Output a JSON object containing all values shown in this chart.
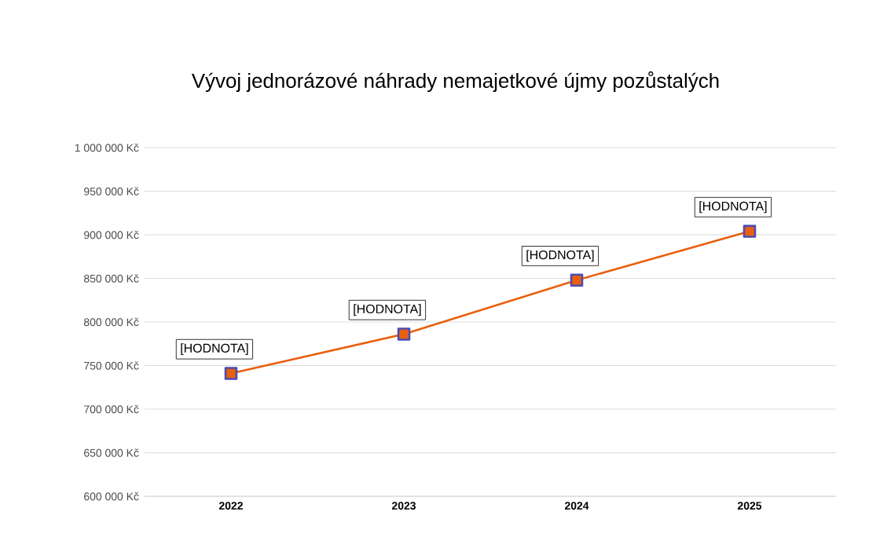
{
  "chart_data": {
    "type": "line",
    "title": "Vývoj jednorázové náhrady nemajetkové újmy pozůstalých",
    "categories": [
      "2022",
      "2023",
      "2024",
      "2025"
    ],
    "values": [
      741000,
      786000,
      848000,
      904000
    ],
    "value_labels": [
      "[HODNOTA]",
      "[HODNOTA]",
      "[HODNOTA]",
      "[HODNOTA]"
    ],
    "color": "#e8600f",
    "marker": "square",
    "grid": "y",
    "ylim": [
      600000,
      1000000
    ],
    "yticks": [
      {
        "value": 600000,
        "label": "600 000 Kč"
      },
      {
        "value": 650000,
        "label": "650 000 Kč"
      },
      {
        "value": 700000,
        "label": "700 000 Kč"
      },
      {
        "value": 750000,
        "label": "750 000 Kč"
      },
      {
        "value": 800000,
        "label": "800 000 Kč"
      },
      {
        "value": 850000,
        "label": "850 000 Kč"
      },
      {
        "value": 900000,
        "label": "900 000 Kč"
      },
      {
        "value": 950000,
        "label": "950 000 Kč"
      },
      {
        "value": 1000000,
        "label": "1 000 000 Kč"
      }
    ]
  }
}
